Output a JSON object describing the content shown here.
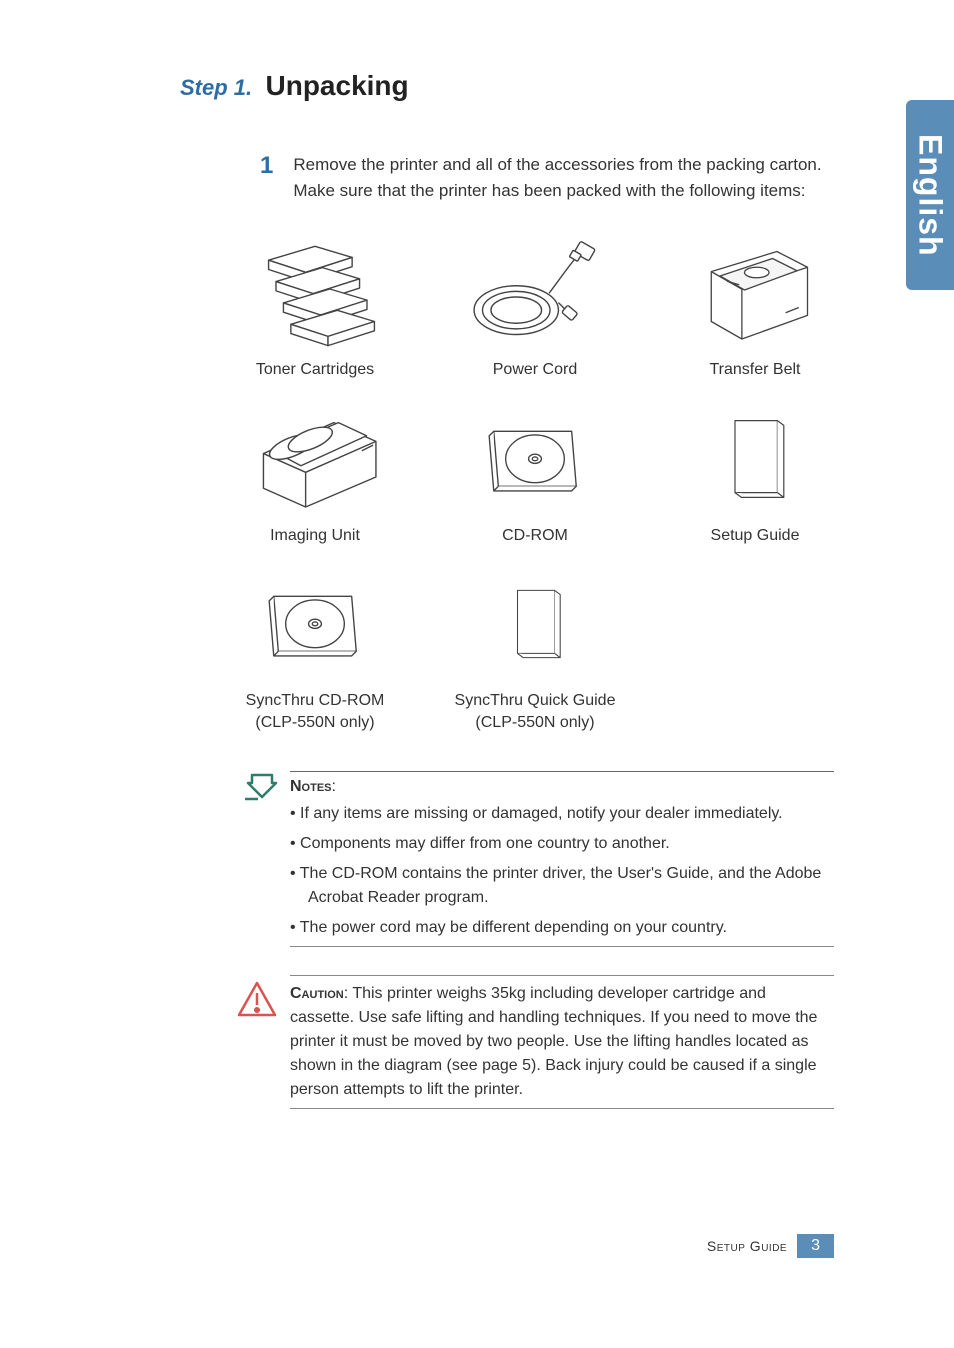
{
  "colors": {
    "accent": "#2e6da4",
    "tab_bg": "#5a8db8",
    "text": "#333333",
    "rule": "#777777",
    "icon_stroke": "#444444",
    "icon_fill": "#ffffff",
    "caution_stroke": "#d9534f"
  },
  "typography": {
    "body_family": "Verdana, Geneva, sans-serif",
    "body_size_pt": 12,
    "step_label_size_pt": 16,
    "step_title_size_pt": 22,
    "intro_num_size_pt": 18
  },
  "language_tab": "English",
  "heading": {
    "step_label": "Step 1.",
    "title": "Unpacking"
  },
  "intro": {
    "number": "1",
    "text": "Remove the printer and all of the accessories from the packing carton. Make sure that the printer has been packed with the following items:"
  },
  "items": [
    {
      "label": "Toner Cartridges",
      "icon": "toner"
    },
    {
      "label": "Power Cord",
      "icon": "cord"
    },
    {
      "label": "Transfer Belt",
      "icon": "belt"
    },
    {
      "label": "Imaging Unit",
      "icon": "imaging"
    },
    {
      "label": "CD-ROM",
      "icon": "cd"
    },
    {
      "label": "Setup Guide",
      "icon": "book"
    },
    {
      "label": "SyncThru CD-ROM\n(CLP-550N only)",
      "icon": "cd"
    },
    {
      "label": "SyncThru Quick Guide\n(CLP-550N only)",
      "icon": "book"
    }
  ],
  "notes": {
    "label": "Notes",
    "bullets": [
      "If any items are missing or damaged, notify your dealer immediately.",
      "Components may differ from one country to another.",
      "The CD-ROM contains the printer driver, the User's Guide, and the Adobe Acrobat Reader program.",
      "The power cord may be different depending on your country."
    ]
  },
  "caution": {
    "label": "Caution",
    "text": ": This printer weighs 35kg including developer cartridge and cassette. Use safe lifting and handling techniques. If you need to move the printer it must be moved by two people. Use the lifting handles located as shown in the diagram (see page 5). Back injury could be caused if a single person attempts to lift the printer."
  },
  "footer": {
    "label": "Setup Guide",
    "page": "3"
  }
}
